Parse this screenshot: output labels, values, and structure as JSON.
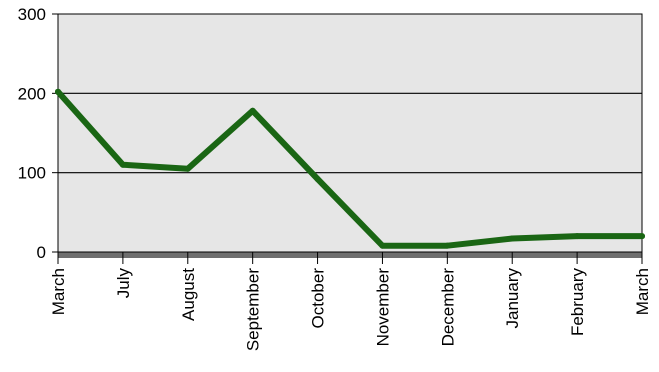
{
  "chart_data": {
    "type": "line",
    "title": "",
    "xlabel": "",
    "ylabel": "",
    "categories": [
      "March",
      "July",
      "August",
      "September",
      "October",
      "November",
      "December",
      "January",
      "February",
      "March"
    ],
    "series": [
      {
        "values": [
          202,
          110,
          105,
          178,
          92,
          8,
          8,
          17,
          20,
          20
        ]
      }
    ],
    "ylim": [
      0,
      300
    ],
    "yticks": [
      0,
      100,
      200,
      300
    ],
    "grid": true,
    "legend": "none",
    "colors": {
      "line": "#1a6614",
      "plot_background": "#e6e6e6",
      "gridline": "#000000",
      "floor": "#6e6e6e"
    }
  }
}
